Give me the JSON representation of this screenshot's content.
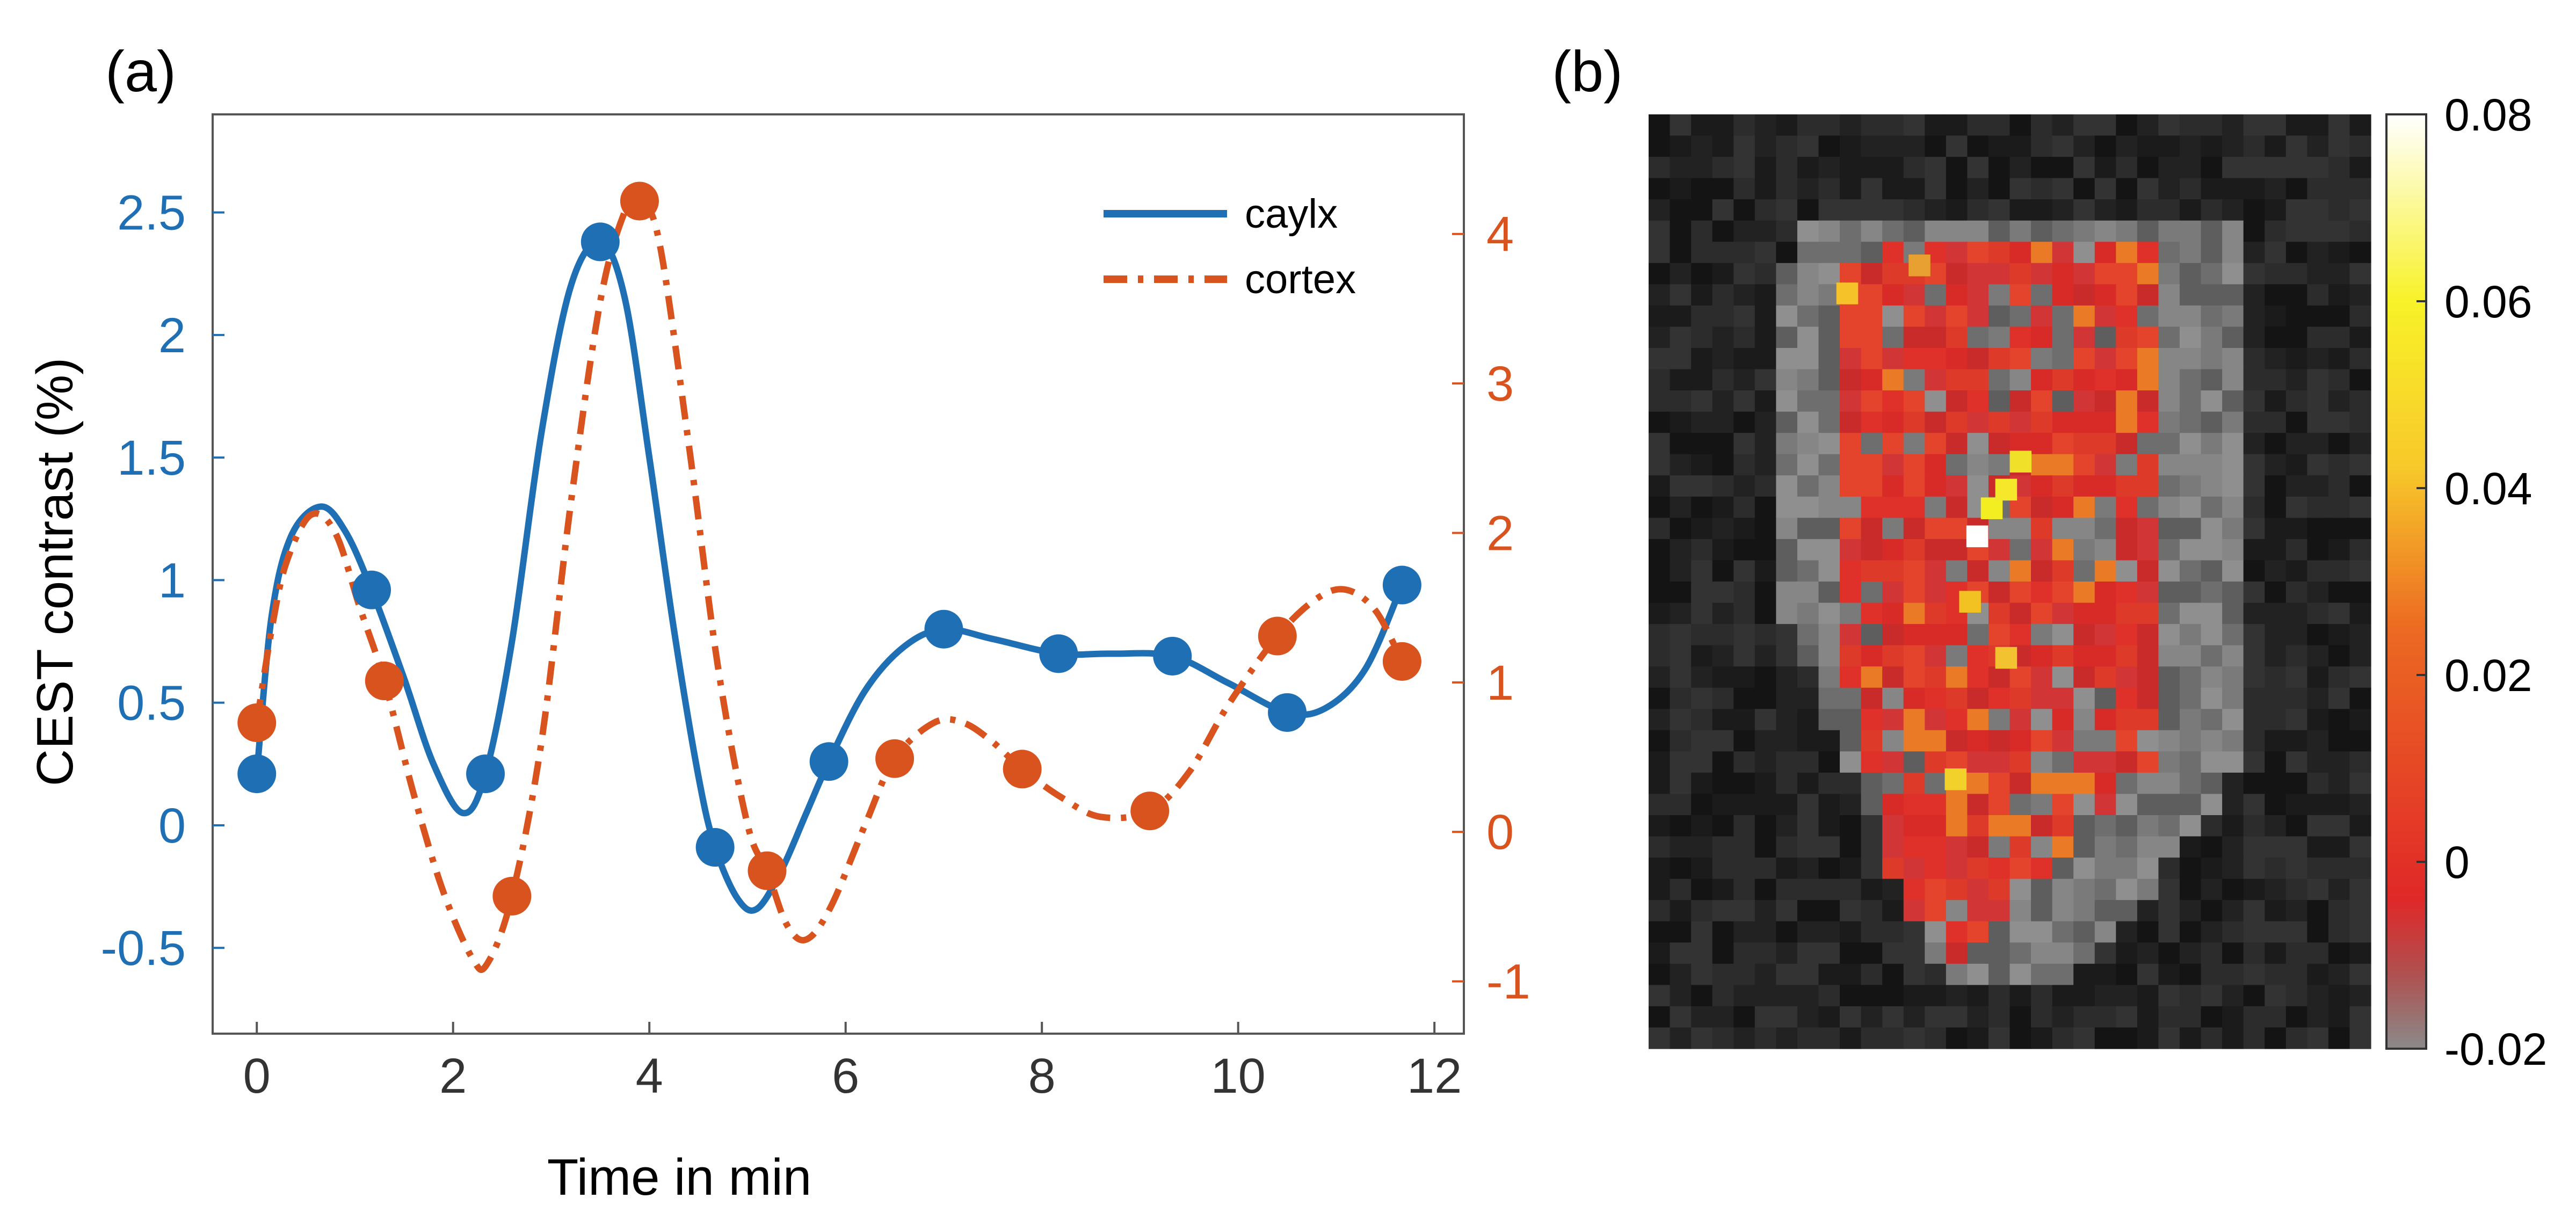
{
  "colors": {
    "series1": "#1f6fb5",
    "series2": "#d9531e",
    "heat_low": "#808080",
    "heat_mid": "#e0302a",
    "heat_high": "#ffee22",
    "heat_max": "#ffffff",
    "background_dark": "#111111"
  },
  "chart_data": [
    {
      "panel_label": "(a)",
      "type": "line",
      "xlabel": "Time in min",
      "ylabel": "CEST contrast (%)",
      "xlim": [
        -0.45,
        12.3
      ],
      "ylim_left": [
        -0.85,
        2.9
      ],
      "ylim_right": [
        -1.35,
        4.8
      ],
      "x_ticks": [
        "0",
        "2",
        "4",
        "6",
        "8",
        "10",
        "12"
      ],
      "y_ticks_left": [
        "-0.5",
        "0",
        "0.5",
        "1",
        "1.5",
        "2",
        "2.5"
      ],
      "y_ticks_right": [
        "-1",
        "0",
        "1",
        "2",
        "3",
        "4"
      ],
      "legend": {
        "position": "top-right",
        "entries": [
          "caylx",
          "cortex"
        ]
      },
      "series": [
        {
          "name": "caylx",
          "axis": "left",
          "style": "solid",
          "markers": [
            [
              0,
              0.21
            ],
            [
              1.17,
              0.96
            ],
            [
              2.33,
              0.21
            ],
            [
              3.5,
              2.38
            ],
            [
              4.67,
              -0.09
            ],
            [
              5.83,
              0.26
            ],
            [
              7.0,
              0.8
            ],
            [
              8.17,
              0.7
            ],
            [
              9.33,
              0.69
            ],
            [
              10.5,
              0.46
            ],
            [
              11.67,
              0.98
            ]
          ],
          "curve": [
            [
              0,
              0.21
            ],
            [
              0.15,
              0.85
            ],
            [
              0.35,
              1.18
            ],
            [
              0.65,
              1.3
            ],
            [
              0.9,
              1.2
            ],
            [
              1.17,
              0.96
            ],
            [
              1.5,
              0.6
            ],
            [
              1.8,
              0.25
            ],
            [
              2.1,
              0.05
            ],
            [
              2.33,
              0.21
            ],
            [
              2.6,
              0.75
            ],
            [
              2.9,
              1.6
            ],
            [
              3.2,
              2.2
            ],
            [
              3.5,
              2.38
            ],
            [
              3.75,
              2.15
            ],
            [
              4.0,
              1.5
            ],
            [
              4.25,
              0.8
            ],
            [
              4.5,
              0.2
            ],
            [
              4.67,
              -0.09
            ],
            [
              4.9,
              -0.3
            ],
            [
              5.1,
              -0.34
            ],
            [
              5.35,
              -0.18
            ],
            [
              5.6,
              0.05
            ],
            [
              5.83,
              0.26
            ],
            [
              6.2,
              0.55
            ],
            [
              6.6,
              0.73
            ],
            [
              7.0,
              0.8
            ],
            [
              7.5,
              0.76
            ],
            [
              8.17,
              0.7
            ],
            [
              8.7,
              0.7
            ],
            [
              9.33,
              0.69
            ],
            [
              9.9,
              0.58
            ],
            [
              10.5,
              0.46
            ],
            [
              10.9,
              0.48
            ],
            [
              11.3,
              0.64
            ],
            [
              11.67,
              0.98
            ]
          ]
        },
        {
          "name": "cortex",
          "axis": "right",
          "style": "dash-dot",
          "markers": [
            [
              0,
              0.73
            ],
            [
              1.3,
              1.01
            ],
            [
              2.6,
              -0.43
            ],
            [
              3.9,
              4.22
            ],
            [
              5.2,
              -0.26
            ],
            [
              6.5,
              0.49
            ],
            [
              7.8,
              0.42
            ],
            [
              9.1,
              0.14
            ],
            [
              10.4,
              1.31
            ],
            [
              11.67,
              1.14
            ]
          ],
          "curve": [
            [
              0,
              0.73
            ],
            [
              0.15,
              1.35
            ],
            [
              0.3,
              1.8
            ],
            [
              0.55,
              2.12
            ],
            [
              0.8,
              2.0
            ],
            [
              1.05,
              1.5
            ],
            [
              1.3,
              1.01
            ],
            [
              1.6,
              0.25
            ],
            [
              1.9,
              -0.4
            ],
            [
              2.2,
              -0.85
            ],
            [
              2.35,
              -0.88
            ],
            [
              2.6,
              -0.43
            ],
            [
              2.9,
              0.6
            ],
            [
              3.2,
              2.2
            ],
            [
              3.5,
              3.55
            ],
            [
              3.75,
              4.15
            ],
            [
              3.9,
              4.22
            ],
            [
              4.1,
              3.95
            ],
            [
              4.4,
              2.6
            ],
            [
              4.7,
              1.1
            ],
            [
              5.0,
              0.05
            ],
            [
              5.2,
              -0.26
            ],
            [
              5.4,
              -0.62
            ],
            [
              5.6,
              -0.72
            ],
            [
              5.85,
              -0.5
            ],
            [
              6.2,
              0.05
            ],
            [
              6.5,
              0.49
            ],
            [
              6.9,
              0.73
            ],
            [
              7.2,
              0.73
            ],
            [
              7.5,
              0.6
            ],
            [
              7.8,
              0.42
            ],
            [
              8.2,
              0.23
            ],
            [
              8.6,
              0.1
            ],
            [
              9.1,
              0.14
            ],
            [
              9.5,
              0.4
            ],
            [
              9.9,
              0.85
            ],
            [
              10.4,
              1.31
            ],
            [
              10.8,
              1.56
            ],
            [
              11.1,
              1.62
            ],
            [
              11.4,
              1.48
            ],
            [
              11.67,
              1.14
            ]
          ]
        }
      ]
    },
    {
      "panel_label": "(b)",
      "type": "heatmap",
      "colorbar": {
        "min": -0.02,
        "max": 0.08,
        "ticks": [
          "0.08",
          "0.06",
          "0.04",
          "0.02",
          "0",
          "-0.02"
        ]
      }
    }
  ]
}
